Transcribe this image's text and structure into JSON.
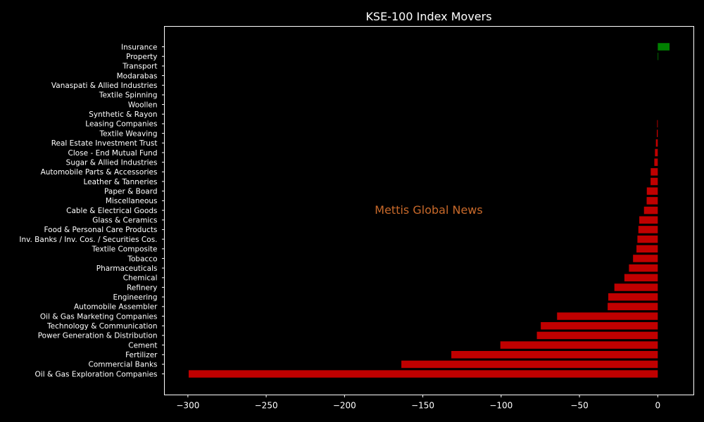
{
  "chart_data": {
    "type": "bar",
    "orientation": "horizontal",
    "title": "KSE-100 Index Movers",
    "watermark": "Mettis Global News",
    "xlabel": "",
    "ylabel": "",
    "xlim": [
      -315,
      23
    ],
    "xticks": [
      -300,
      -250,
      -200,
      -150,
      -100,
      -50,
      0
    ],
    "xtick_labels": [
      "−300",
      "−250",
      "−200",
      "−150",
      "−100",
      "−50",
      "0"
    ],
    "grid": false,
    "legend": "none",
    "colors": {
      "background": "#000000",
      "axes": "#ffffff",
      "text": "#ffffff",
      "positive": "#008000",
      "negative": "#c00000",
      "watermark": "#c8692a"
    },
    "categories": [
      "Insurance",
      "Property",
      "Transport",
      "Modarabas",
      "Vanaspati & Allied Industries",
      "Textile Spinning",
      "Woollen",
      "Synthetic & Rayon",
      "Leasing Companies",
      "Textile Weaving",
      "Real Estate Investment Trust",
      "Close - End Mutual Fund",
      "Sugar & Allied Industries",
      "Automobile Parts & Accessories",
      "Leather & Tanneries",
      "Paper & Board",
      "Miscellaneous",
      "Cable & Electrical Goods",
      "Glass & Ceramics",
      "Food & Personal Care Products",
      "Inv. Banks / Inv. Cos. / Securities Cos.",
      "Textile Composite",
      "Tobacco",
      "Pharmaceuticals",
      "Chemical",
      "Refinery",
      "Engineering",
      "Automobile Assembler",
      "Oil & Gas Marketing Companies",
      "Technology & Communication",
      "Power Generation & Distribution",
      "Cement",
      "Fertilizer",
      "Commercial Banks",
      "Oil & Gas Exploration Companies"
    ],
    "values": [
      7.5,
      0.3,
      0,
      0,
      0,
      0,
      0,
      0,
      -0.4,
      -0.6,
      -1.2,
      -1.8,
      -2.2,
      -4.5,
      -4.6,
      -7.0,
      -7.1,
      -8.8,
      -11.8,
      -12.4,
      -13.0,
      -13.6,
      -15.8,
      -18.4,
      -21.3,
      -27.7,
      -31.6,
      -32.0,
      -64.3,
      -74.7,
      -77.2,
      -100.5,
      -131.8,
      -163.7,
      -299.5
    ]
  }
}
